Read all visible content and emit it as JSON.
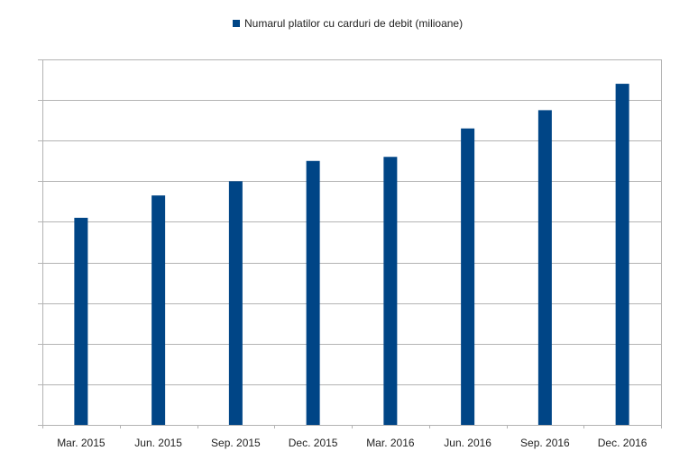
{
  "chart_data": {
    "type": "bar",
    "categories": [
      "Mar. 2015",
      "Jun. 2015",
      "Sep. 2015",
      "Dec. 2015",
      "Mar. 2016",
      "Jun. 2016",
      "Sep. 2016",
      "Dec. 2016"
    ],
    "series": [
      {
        "name": "Numarul platilor cu carduri de debit (milioane)",
        "values": [
          5.1,
          5.65,
          6.0,
          6.5,
          6.6,
          7.3,
          7.75,
          8.4
        ]
      }
    ],
    "ylim": [
      0,
      9
    ],
    "grid": true,
    "legend_position": "top",
    "y_tick_labels_visible": false,
    "bar_color": "#004586"
  }
}
